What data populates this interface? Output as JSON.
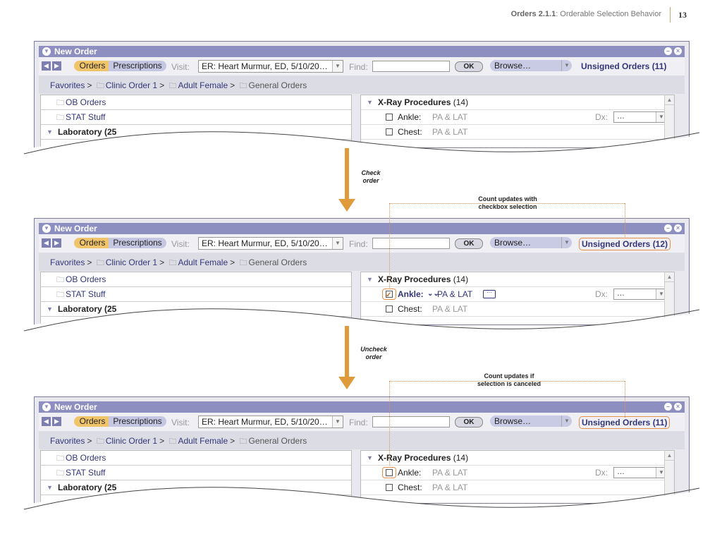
{
  "page_header": {
    "product": "Orders 2.1.1",
    "section": ": Orderable Selection Behavior",
    "page_number": "13"
  },
  "steps": [
    {
      "label_line1": "Check",
      "label_line2": "order"
    },
    {
      "label_line1": "Uncheck",
      "label_line2": "order"
    }
  ],
  "callouts": [
    {
      "line1": "Count updates with",
      "line2": "checkbox selection"
    },
    {
      "line1": "Count updates if",
      "line2": "selection is canceled"
    }
  ],
  "window": {
    "title": "New Order",
    "tabs": {
      "orders": "Orders",
      "prescriptions": "Prescriptions"
    },
    "visit_label": "Visit:",
    "visit_value": "ER: Heart Murmur, ED, 5/10/20…",
    "find_label": "Find:",
    "ok_label": "OK",
    "browse_label": "Browse…",
    "breadcrumb": {
      "favorites": "Favorites",
      "clinic": "Clinic Order 1",
      "adult": "Adult Female",
      "general": "General Orders",
      "sep": ">"
    },
    "left_list": {
      "ob": "OB Orders",
      "stat": "STAT Stuff",
      "lab": "Laboratory (25"
    },
    "right_list": {
      "group_title": "X-Ray Procedures",
      "group_count": "(14)",
      "ankle": "Ankle:",
      "chest": "Chest:",
      "view": "PA & LAT",
      "dx_label": "Dx:",
      "dx_value": "…"
    }
  },
  "screens": [
    {
      "unsigned": "Unsigned Orders (11)",
      "ankle_checked": false,
      "highlight": false
    },
    {
      "unsigned": "Unsigned Orders (12)",
      "ankle_checked": true,
      "highlight": true
    },
    {
      "unsigned": "Unsigned Orders (11)",
      "ankle_checked": false,
      "highlight": true
    }
  ],
  "colors": {
    "accent_orange": "#df9a3a",
    "title_purple": "#8e8fc1",
    "link_navy": "#33367a"
  }
}
